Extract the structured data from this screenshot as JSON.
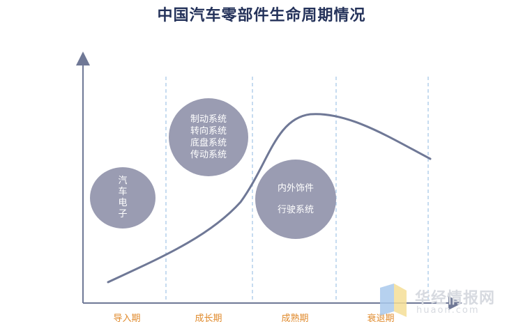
{
  "title": "中国汽车零部件生命周期情况",
  "bubbles": {
    "electronics": [
      "汽",
      "车",
      "电",
      "子"
    ],
    "growth": [
      "制动系统",
      "转向系统",
      "底盘系统",
      "传动系统"
    ],
    "mature": [
      "内外饰件",
      "行驶系统"
    ]
  },
  "stages": [
    "导入期",
    "成长期",
    "成熟期",
    "衰退期"
  ],
  "watermark": {
    "name": "华经情报网",
    "url": "huaon.com"
  },
  "colors": {
    "axis": "#6f7896",
    "bubble": "#9a9cb2",
    "stage_label": "#e08a2c",
    "divider": "#a8c8e8"
  }
}
